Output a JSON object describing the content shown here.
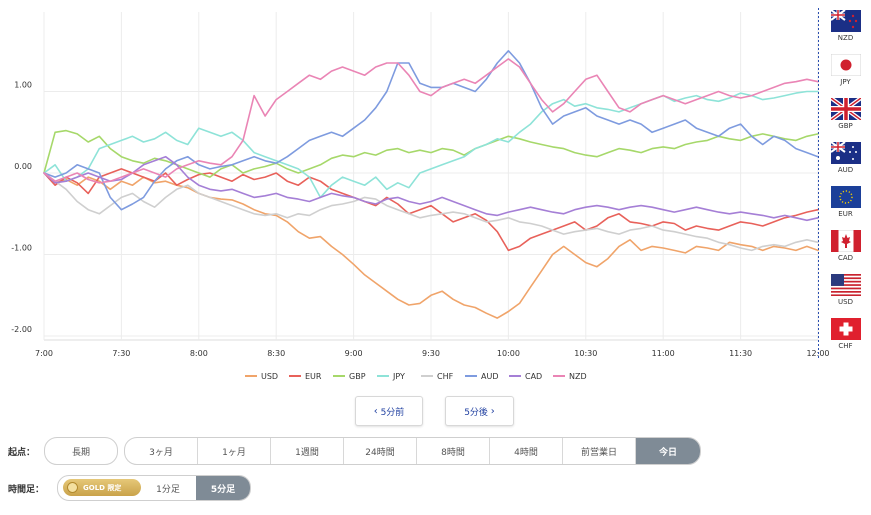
{
  "chart_data": {
    "type": "line",
    "title": "",
    "xlabel": "",
    "ylabel": "",
    "ylim": [
      -2.0,
      2.0
    ],
    "y_ticks": [
      1.0,
      0.0,
      -1.0,
      -2.0
    ],
    "y_tick_labels": [
      "1.00",
      "0.00",
      "-1.00",
      "-2.00"
    ],
    "x_tick_labels": [
      "7:00",
      "7:30",
      "8:00",
      "8:30",
      "9:00",
      "9:30",
      "10:00",
      "10:30",
      "11:00",
      "11:30",
      "12:00"
    ],
    "x_steps": 70,
    "legend_position": "bottom",
    "grid": true,
    "series": [
      {
        "name": "USD",
        "color": "#f0a46a",
        "values": [
          0.0,
          -0.12,
          -0.08,
          -0.15,
          -0.05,
          -0.1,
          -0.2,
          -0.1,
          -0.15,
          -0.05,
          -0.12,
          -0.1,
          -0.15,
          -0.18,
          -0.25,
          -0.3,
          -0.32,
          -0.33,
          -0.38,
          -0.45,
          -0.5,
          -0.52,
          -0.6,
          -0.72,
          -0.8,
          -0.78,
          -0.9,
          -1.0,
          -1.12,
          -1.25,
          -1.35,
          -1.45,
          -1.55,
          -1.62,
          -1.6,
          -1.5,
          -1.45,
          -1.55,
          -1.62,
          -1.65,
          -1.72,
          -1.78,
          -1.7,
          -1.6,
          -1.4,
          -1.2,
          -1.0,
          -0.9,
          -1.0,
          -1.1,
          -1.15,
          -1.05,
          -0.9,
          -0.82,
          -0.95,
          -0.9,
          -0.92,
          -0.95,
          -0.98,
          -0.9,
          -0.92,
          -0.95,
          -0.85,
          -0.88,
          -0.9,
          -0.95,
          -0.9,
          -0.92,
          -0.95,
          -0.9,
          -0.95
        ]
      },
      {
        "name": "EUR",
        "color": "#e8615a",
        "values": [
          0.0,
          -0.15,
          -0.05,
          -0.12,
          -0.25,
          -0.05,
          0.0,
          0.05,
          0.0,
          -0.05,
          -0.1,
          0.0,
          -0.15,
          -0.08,
          -0.02,
          0.0,
          -0.05,
          -0.1,
          -0.02,
          -0.08,
          -0.05,
          0.0,
          -0.1,
          -0.15,
          -0.05,
          -0.1,
          -0.2,
          -0.25,
          -0.3,
          -0.35,
          -0.4,
          -0.3,
          -0.38,
          -0.5,
          -0.45,
          -0.4,
          -0.5,
          -0.6,
          -0.55,
          -0.5,
          -0.58,
          -0.72,
          -0.95,
          -0.9,
          -0.8,
          -0.75,
          -0.7,
          -0.65,
          -0.6,
          -0.7,
          -0.65,
          -0.55,
          -0.5,
          -0.6,
          -0.62,
          -0.65,
          -0.6,
          -0.62,
          -0.7,
          -0.65,
          -0.68,
          -0.7,
          -0.65,
          -0.6,
          -0.62,
          -0.65,
          -0.6,
          -0.55,
          -0.52,
          -0.48,
          -0.45
        ]
      },
      {
        "name": "GBP",
        "color": "#a6d86a",
        "values": [
          0.0,
          0.5,
          0.52,
          0.48,
          0.38,
          0.45,
          0.3,
          0.2,
          0.15,
          0.12,
          0.18,
          0.15,
          0.1,
          0.05,
          0.0,
          -0.05,
          0.05,
          0.1,
          0.0,
          0.05,
          0.08,
          0.12,
          0.05,
          0.0,
          0.05,
          0.1,
          0.18,
          0.22,
          0.2,
          0.25,
          0.22,
          0.28,
          0.3,
          0.25,
          0.28,
          0.25,
          0.3,
          0.28,
          0.22,
          0.3,
          0.35,
          0.4,
          0.45,
          0.42,
          0.38,
          0.35,
          0.32,
          0.3,
          0.25,
          0.22,
          0.2,
          0.25,
          0.3,
          0.28,
          0.25,
          0.3,
          0.32,
          0.3,
          0.35,
          0.38,
          0.4,
          0.45,
          0.42,
          0.4,
          0.45,
          0.48,
          0.45,
          0.42,
          0.4,
          0.45,
          0.48
        ]
      },
      {
        "name": "JPY",
        "color": "#8ee3d8",
        "values": [
          0.0,
          0.1,
          -0.1,
          -0.05,
          0.05,
          0.3,
          0.35,
          0.4,
          0.45,
          0.38,
          0.42,
          0.5,
          0.4,
          0.35,
          0.55,
          0.5,
          0.45,
          0.5,
          0.4,
          0.25,
          0.2,
          0.15,
          0.1,
          0.05,
          -0.05,
          -0.3,
          -0.15,
          -0.05,
          -0.1,
          -0.15,
          -0.05,
          -0.2,
          -0.12,
          -0.18,
          0.0,
          0.05,
          0.1,
          0.15,
          0.2,
          0.3,
          0.35,
          0.42,
          0.38,
          0.5,
          0.6,
          0.75,
          0.85,
          0.9,
          0.82,
          0.85,
          0.8,
          0.78,
          0.75,
          0.8,
          0.85,
          0.9,
          0.95,
          0.88,
          0.92,
          0.95,
          0.9,
          0.88,
          0.92,
          0.98,
          0.95,
          0.9,
          0.92,
          0.95,
          0.98,
          1.0,
          1.0
        ]
      },
      {
        "name": "CHF",
        "color": "#cfcfcf",
        "values": [
          0.0,
          -0.1,
          -0.2,
          -0.35,
          -0.45,
          -0.5,
          -0.4,
          -0.3,
          -0.25,
          -0.35,
          -0.42,
          -0.3,
          -0.2,
          -0.15,
          -0.25,
          -0.3,
          -0.35,
          -0.4,
          -0.45,
          -0.5,
          -0.52,
          -0.5,
          -0.55,
          -0.5,
          -0.52,
          -0.45,
          -0.4,
          -0.38,
          -0.35,
          -0.3,
          -0.32,
          -0.4,
          -0.45,
          -0.5,
          -0.55,
          -0.52,
          -0.5,
          -0.48,
          -0.5,
          -0.55,
          -0.6,
          -0.58,
          -0.55,
          -0.6,
          -0.62,
          -0.65,
          -0.7,
          -0.75,
          -0.72,
          -0.7,
          -0.68,
          -0.72,
          -0.75,
          -0.7,
          -0.68,
          -0.65,
          -0.7,
          -0.72,
          -0.75,
          -0.78,
          -0.8,
          -0.85,
          -0.88,
          -0.92,
          -0.95,
          -0.9,
          -0.88,
          -0.9,
          -0.85,
          -0.82,
          -0.85
        ]
      },
      {
        "name": "AUD",
        "color": "#7e9bdf",
        "values": [
          0.0,
          -0.05,
          0.0,
          0.1,
          0.05,
          0.0,
          -0.3,
          -0.45,
          -0.38,
          -0.3,
          -0.1,
          0.05,
          0.15,
          0.2,
          0.1,
          0.05,
          0.08,
          0.1,
          0.15,
          0.2,
          0.15,
          0.12,
          0.2,
          0.3,
          0.4,
          0.45,
          0.5,
          0.45,
          0.55,
          0.65,
          0.8,
          1.0,
          1.35,
          1.35,
          1.1,
          1.05,
          1.05,
          1.1,
          1.05,
          1.0,
          1.15,
          1.35,
          1.5,
          1.35,
          1.1,
          0.8,
          0.6,
          0.7,
          0.75,
          0.8,
          0.7,
          0.65,
          0.6,
          0.65,
          0.6,
          0.5,
          0.55,
          0.6,
          0.65,
          0.55,
          0.5,
          0.45,
          0.55,
          0.6,
          0.45,
          0.35,
          0.45,
          0.4,
          0.3,
          0.25,
          0.2
        ]
      },
      {
        "name": "CAD",
        "color": "#a57fd6",
        "values": [
          0.0,
          -0.12,
          -0.1,
          -0.05,
          0.0,
          -0.05,
          -0.1,
          -0.08,
          0.0,
          0.1,
          0.15,
          0.2,
          0.1,
          -0.05,
          -0.15,
          -0.2,
          -0.22,
          -0.2,
          -0.25,
          -0.3,
          -0.28,
          -0.25,
          -0.3,
          -0.32,
          -0.35,
          -0.3,
          -0.25,
          -0.28,
          -0.3,
          -0.35,
          -0.38,
          -0.32,
          -0.3,
          -0.35,
          -0.38,
          -0.35,
          -0.3,
          -0.35,
          -0.4,
          -0.45,
          -0.5,
          -0.52,
          -0.48,
          -0.45,
          -0.42,
          -0.45,
          -0.48,
          -0.5,
          -0.45,
          -0.42,
          -0.4,
          -0.42,
          -0.45,
          -0.42,
          -0.4,
          -0.42,
          -0.45,
          -0.48,
          -0.45,
          -0.42,
          -0.45,
          -0.48,
          -0.5,
          -0.48,
          -0.5,
          -0.52,
          -0.55,
          -0.52,
          -0.55,
          -0.58,
          -0.55
        ]
      },
      {
        "name": "NZD",
        "color": "#ea85b5",
        "values": [
          0.0,
          -0.1,
          -0.05,
          0.0,
          -0.08,
          -0.12,
          -0.1,
          -0.05,
          0.0,
          0.05,
          0.0,
          -0.05,
          0.05,
          0.1,
          0.15,
          0.12,
          0.1,
          0.2,
          0.4,
          0.95,
          0.7,
          0.9,
          1.0,
          1.1,
          1.2,
          1.15,
          1.25,
          1.3,
          1.25,
          1.2,
          1.3,
          1.35,
          1.35,
          1.2,
          1.0,
          0.95,
          1.05,
          1.1,
          1.15,
          1.1,
          1.2,
          1.3,
          1.4,
          1.3,
          1.1,
          0.9,
          0.75,
          0.85,
          1.0,
          1.15,
          1.2,
          1.0,
          0.8,
          0.75,
          0.85,
          0.9,
          0.95,
          0.9,
          0.85,
          0.9,
          0.95,
          1.0,
          0.95,
          0.92,
          0.95,
          1.0,
          1.05,
          1.1,
          1.12,
          1.15,
          1.12
        ]
      }
    ]
  },
  "flags": [
    {
      "code": "NZD",
      "icon": "new-zealand-flag-icon"
    },
    {
      "code": "JPY",
      "icon": "japan-flag-icon"
    },
    {
      "code": "GBP",
      "icon": "united-kingdom-flag-icon"
    },
    {
      "code": "AUD",
      "icon": "australia-flag-icon"
    },
    {
      "code": "EUR",
      "icon": "european-union-flag-icon"
    },
    {
      "code": "CAD",
      "icon": "canada-flag-icon"
    },
    {
      "code": "USD",
      "icon": "united-states-flag-icon"
    },
    {
      "code": "CHF",
      "icon": "switzerland-flag-icon"
    }
  ],
  "nav": {
    "prev_label": "5分前",
    "next_label": "5分後",
    "prev_icon": "chevron-left-icon",
    "next_icon": "chevron-right-icon"
  },
  "start": {
    "label": "起点：",
    "long_term": "長期",
    "options": [
      "3ヶ月",
      "1ヶ月",
      "1週間",
      "24時間",
      "8時間",
      "4時間",
      "前営業日",
      "今日"
    ],
    "selected": "今日"
  },
  "timeframe": {
    "label": "時間足：",
    "gold_label": "GOLD 限定",
    "gold_icon": "gold-coin-icon",
    "options": [
      "1分足",
      "5分足"
    ],
    "selected": "5分足"
  },
  "colors": {
    "accent": "#7f8b96",
    "link": "#1f3fa0",
    "divider": "#2b4fb0"
  }
}
